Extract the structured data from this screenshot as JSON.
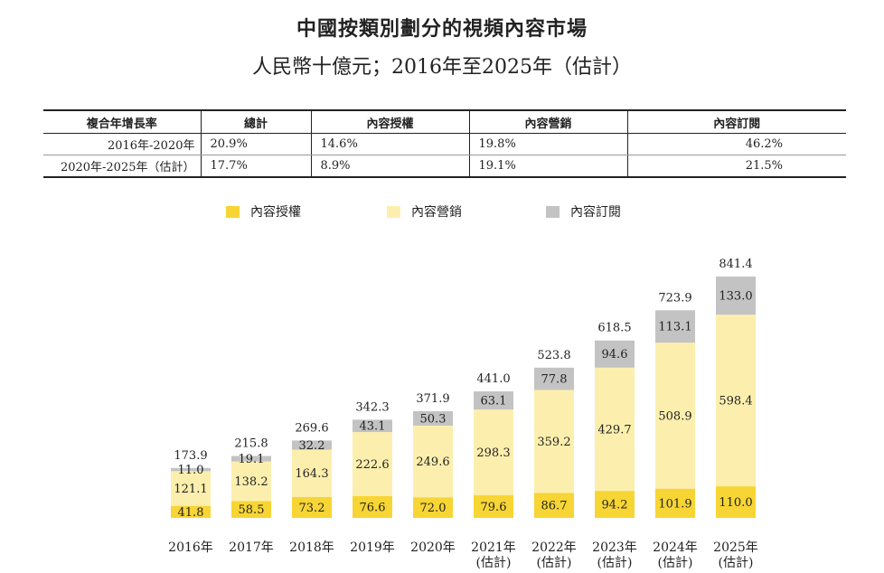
{
  "title": "中國按類別劃分的視頻內容市場",
  "subtitle": "人民幣十億元；2016年至2025年（估計）",
  "cagr_table": {
    "headers": [
      "複合年增長率",
      "總計",
      "內容授權",
      "內容營銷",
      "內容訂閱"
    ],
    "rows": [
      [
        "2016年-2020年",
        "20.9%",
        "14.6%",
        "19.8%",
        "46.2%"
      ],
      [
        "2020年-2025年（估計）",
        "17.7%",
        "8.9%",
        "19.1%",
        "21.5%"
      ]
    ]
  },
  "colors": {
    "licensing": "#f7d534",
    "marketing": "#fcefae",
    "subscription": "#c3c3c3"
  },
  "chart_data": {
    "type": "bar",
    "stacked": true,
    "title": "中國按類別劃分的視頻內容市場",
    "subtitle": "人民幣十億元；2016年至2025年（估計）",
    "legend_position": "top",
    "categories": [
      "2016年",
      "2017年",
      "2018年",
      "2019年",
      "2020年",
      "2021年\n(估計)",
      "2022年\n(估計)",
      "2023年\n(估計)",
      "2024年\n(估計)",
      "2025年\n(估計)"
    ],
    "series": [
      {
        "name": "內容授權",
        "values": [
          41.8,
          58.5,
          73.2,
          76.6,
          72.0,
          79.6,
          86.7,
          94.2,
          101.9,
          110.0
        ]
      },
      {
        "name": "內容營銷",
        "values": [
          121.1,
          138.2,
          164.3,
          222.6,
          249.6,
          298.3,
          359.2,
          429.7,
          508.9,
          598.4
        ]
      },
      {
        "name": "內容訂閱",
        "values": [
          11.0,
          19.1,
          32.2,
          43.1,
          50.3,
          63.1,
          77.8,
          94.6,
          113.1,
          133.0
        ]
      }
    ],
    "totals": [
      173.9,
      215.8,
      269.6,
      342.3,
      371.9,
      441.0,
      523.8,
      618.5,
      723.9,
      841.4
    ],
    "ylim": [
      0,
      841.4
    ]
  }
}
